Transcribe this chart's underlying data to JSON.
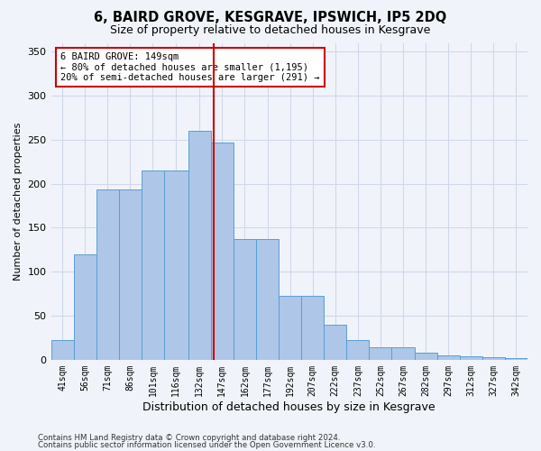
{
  "title": "6, BAIRD GROVE, KESGRAVE, IPSWICH, IP5 2DQ",
  "subtitle": "Size of property relative to detached houses in Kesgrave",
  "xlabel": "Distribution of detached houses by size in Kesgrave",
  "ylabel": "Number of detached properties",
  "footer1": "Contains HM Land Registry data © Crown copyright and database right 2024.",
  "footer2": "Contains public sector information licensed under the Open Government Licence v3.0.",
  "annotation_title": "6 BAIRD GROVE: 149sqm",
  "annotation_line1": "← 80% of detached houses are smaller (1,195)",
  "annotation_line2": "20% of semi-detached houses are larger (291) →",
  "marker_value": 149,
  "bar_labels": [
    "41sqm",
    "56sqm",
    "71sqm",
    "86sqm",
    "101sqm",
    "116sqm",
    "132sqm",
    "147sqm",
    "162sqm",
    "177sqm",
    "192sqm",
    "207sqm",
    "222sqm",
    "237sqm",
    "252sqm",
    "267sqm",
    "282sqm",
    "297sqm",
    "312sqm",
    "327sqm",
    "342sqm"
  ],
  "bar_edges": [
    41,
    56,
    71,
    86,
    101,
    116,
    132,
    147,
    162,
    177,
    192,
    207,
    222,
    237,
    252,
    267,
    282,
    297,
    312,
    327,
    342,
    357
  ],
  "bar_heights": [
    22,
    120,
    193,
    193,
    215,
    215,
    260,
    247,
    137,
    137,
    73,
    73,
    40,
    22,
    14,
    14,
    8,
    5,
    4,
    3,
    2
  ],
  "bar_color": "#aec6e8",
  "bar_edge_color": "#5a9fd4",
  "marker_line_color": "#cc0000",
  "annotation_box_color": "#cc0000",
  "grid_color": "#d0d8e8",
  "background_color": "#f0f4fa",
  "ylim": [
    0,
    360
  ],
  "yticks": [
    0,
    50,
    100,
    150,
    200,
    250,
    300,
    350
  ]
}
